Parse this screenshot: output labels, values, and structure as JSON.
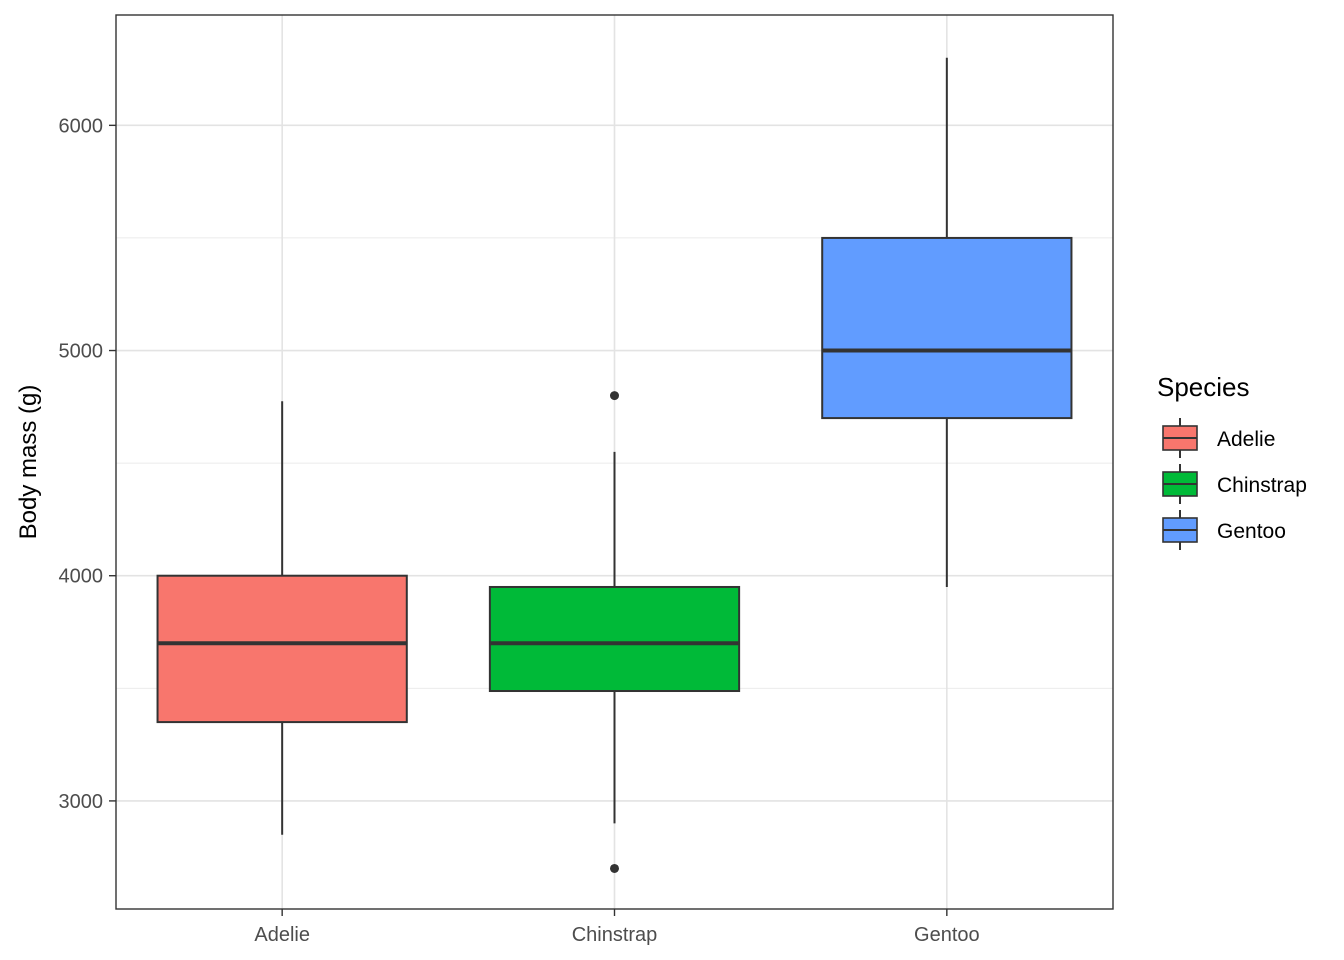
{
  "chart_data": {
    "type": "boxplot",
    "title": "",
    "xlabel": "",
    "ylabel": "Body mass (g)",
    "ylim": [
      2520,
      6490
    ],
    "yticks": [
      3000,
      4000,
      5000,
      6000
    ],
    "grid": true,
    "categories": [
      "Adelie",
      "Chinstrap",
      "Gentoo"
    ],
    "boxes": [
      {
        "category": "Adelie",
        "whisker_low": 2850,
        "q1": 3350,
        "median": 3700,
        "q3": 4000,
        "whisker_high": 4775,
        "outliers": [],
        "color": "#F8766D"
      },
      {
        "category": "Chinstrap",
        "whisker_low": 2900,
        "q1": 3488,
        "median": 3700,
        "q3": 3950,
        "whisker_high": 4550,
        "outliers": [
          2700,
          4800
        ],
        "color": "#00BA38"
      },
      {
        "category": "Gentoo",
        "whisker_low": 3950,
        "q1": 4700,
        "median": 5000,
        "q3": 5500,
        "whisker_high": 6300,
        "outliers": [],
        "color": "#619CFF"
      }
    ],
    "legend": {
      "title": "Species",
      "position": "right",
      "entries": [
        {
          "label": "Adelie",
          "color": "#F8766D"
        },
        {
          "label": "Chinstrap",
          "color": "#00BA38"
        },
        {
          "label": "Gentoo",
          "color": "#619CFF"
        }
      ]
    }
  }
}
